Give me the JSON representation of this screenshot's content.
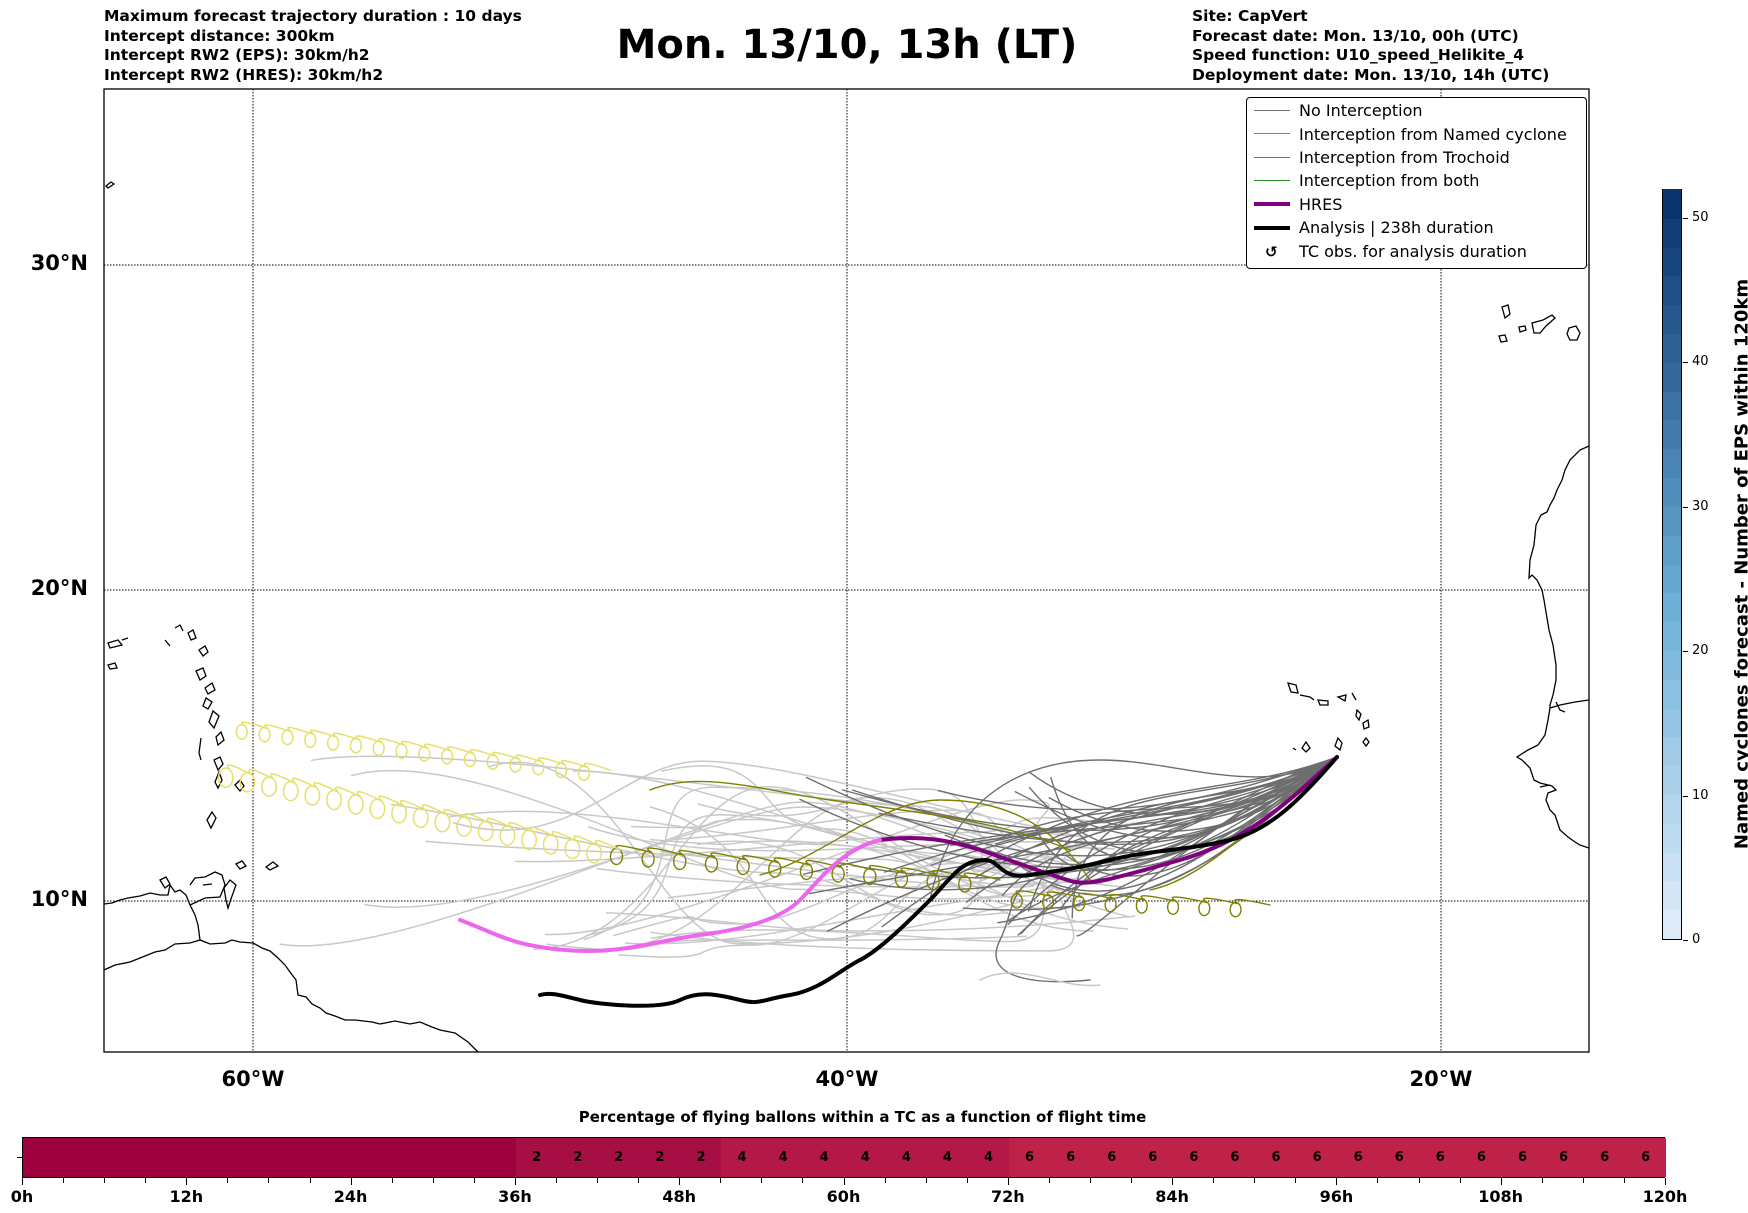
{
  "header": {
    "left": [
      "Maximum forecast trajectory duration : 10 days",
      "Intercept distance: 300km",
      "Intercept RW2 (EPS):  30km/h2",
      "Intercept RW2 (HRES): 30km/h2"
    ],
    "title": "Mon. 13/10, 13h (LT)",
    "right": [
      "Site: CapVert",
      "Forecast date: Mon. 13/10, 00h (UTC)",
      "Speed function: U10_speed_Helikite_4",
      "Deployment date: Mon. 13/10, 14h (UTC)"
    ]
  },
  "map": {
    "lat_ticks": [
      {
        "value": 30,
        "label": "30°N"
      },
      {
        "value": 20,
        "label": "20°N"
      },
      {
        "value": 10,
        "label": "10°N"
      }
    ],
    "lon_ticks": [
      {
        "value": -60,
        "label": "60°W"
      },
      {
        "value": -40,
        "label": "40°W"
      },
      {
        "value": -20,
        "label": "20°W"
      }
    ],
    "lon_range": [
      -65,
      -15
    ],
    "lat_range": [
      5.5,
      35.6
    ]
  },
  "legend": {
    "items": [
      {
        "label": "No Interception",
        "kind": "line",
        "color": "#707070",
        "width": 1.2
      },
      {
        "label": "Interception from Named cyclone",
        "kind": "line",
        "color": "#ff5722",
        "width": 1.2
      },
      {
        "label": "Interception from Trochoid",
        "kind": "line",
        "color": "#808000",
        "width": 1.2
      },
      {
        "label": "Interception from both",
        "kind": "line",
        "color": "#228b22",
        "width": 1.2
      },
      {
        "label": "HRES",
        "kind": "line",
        "color": "#800080",
        "width": 4
      },
      {
        "label": "Analysis | 238h duration",
        "kind": "line",
        "color": "#000000",
        "width": 4
      },
      {
        "label": "TC obs. for analysis duration",
        "kind": "glyph",
        "glyph": "↺",
        "color": "#000000"
      }
    ]
  },
  "colorbar": {
    "label": "Named cyclones forecast - Number of EPS within 120km",
    "min": 0,
    "max": 52,
    "step": 2,
    "ticks": [
      {
        "value": 0,
        "label": "0"
      },
      {
        "value": 10,
        "label": "10"
      },
      {
        "value": 20,
        "label": "20"
      },
      {
        "value": 30,
        "label": "30"
      },
      {
        "value": 40,
        "label": "40"
      },
      {
        "value": 50,
        "label": "50"
      }
    ],
    "color_low": "#e3eef9",
    "color_high": "#08306b"
  },
  "chart_data": {
    "type": "heatmap",
    "title": "Percentage of flying ballons within a TC as a function of flight time",
    "xlabel": "",
    "x_unit": "h",
    "x_range": [
      0,
      120
    ],
    "cell_hours": 3,
    "x_ticks": [
      {
        "value": 0,
        "label": "0h"
      },
      {
        "value": 12,
        "label": "12h"
      },
      {
        "value": 24,
        "label": "24h"
      },
      {
        "value": 36,
        "label": "36h"
      },
      {
        "value": 48,
        "label": "48h"
      },
      {
        "value": 60,
        "label": "60h"
      },
      {
        "value": 72,
        "label": "72h"
      },
      {
        "value": 84,
        "label": "84h"
      },
      {
        "value": 96,
        "label": "96h"
      },
      {
        "value": 108,
        "label": "108h"
      },
      {
        "value": 120,
        "label": "120h"
      }
    ],
    "values": [
      0,
      0,
      0,
      0,
      0,
      0,
      0,
      0,
      0,
      0,
      0,
      0,
      2,
      2,
      2,
      2,
      2,
      4,
      4,
      4,
      4,
      4,
      4,
      4,
      6,
      6,
      6,
      6,
      6,
      6,
      6,
      6,
      6,
      6,
      6,
      6,
      6,
      6,
      6,
      6
    ],
    "colors": {
      "0": "#9e003d",
      "2": "#a60f44",
      "4": "#b31846",
      "6": "#be2249"
    }
  }
}
